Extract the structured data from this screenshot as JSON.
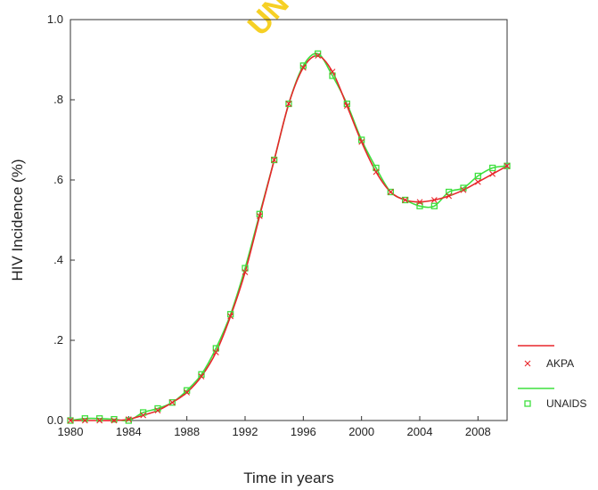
{
  "watermark": "UN",
  "colors": {
    "akpa": "#e8262b",
    "unaids": "#3ee03e",
    "axis": "#333333"
  },
  "chart_data": {
    "type": "line",
    "xlabel": "Time in years",
    "ylabel": "HIV Incidence (%)",
    "xlim": [
      1980,
      2010
    ],
    "ylim": [
      0,
      1.0
    ],
    "x_ticks": [
      1980,
      1984,
      1988,
      1992,
      1996,
      2000,
      2004,
      2008
    ],
    "y_ticks": [
      0,
      0.2,
      0.4,
      0.6,
      0.8,
      1.0
    ],
    "y_tick_labels": [
      "0.0",
      ".2",
      ".4",
      ".6",
      ".8",
      "1.0"
    ],
    "x": [
      1980,
      1981,
      1982,
      1983,
      1984,
      1985,
      1986,
      1987,
      1988,
      1989,
      1990,
      1991,
      1992,
      1993,
      1994,
      1995,
      1996,
      1997,
      1998,
      1999,
      2000,
      2001,
      2002,
      2003,
      2004,
      2005,
      2006,
      2007,
      2008,
      2009,
      2010
    ],
    "legend_position": "right",
    "series": [
      {
        "name": "AKPA",
        "marker": "x",
        "values": [
          0.0,
          0.0,
          0.0,
          0.0,
          0.003,
          0.013,
          0.025,
          0.045,
          0.07,
          0.11,
          0.17,
          0.26,
          0.37,
          0.51,
          0.65,
          0.79,
          0.88,
          0.91,
          0.87,
          0.785,
          0.695,
          0.62,
          0.57,
          0.55,
          0.545,
          0.55,
          0.56,
          0.575,
          0.595,
          0.615,
          0.635
        ]
      },
      {
        "name": "UNAIDS",
        "marker": "square",
        "values": [
          0.0,
          0.005,
          0.005,
          0.003,
          0.0,
          0.02,
          0.03,
          0.045,
          0.075,
          0.115,
          0.18,
          0.265,
          0.38,
          0.515,
          0.65,
          0.79,
          0.885,
          0.915,
          0.86,
          0.79,
          0.7,
          0.63,
          0.57,
          0.55,
          0.535,
          0.535,
          0.57,
          0.58,
          0.61,
          0.63,
          0.635
        ]
      }
    ]
  }
}
